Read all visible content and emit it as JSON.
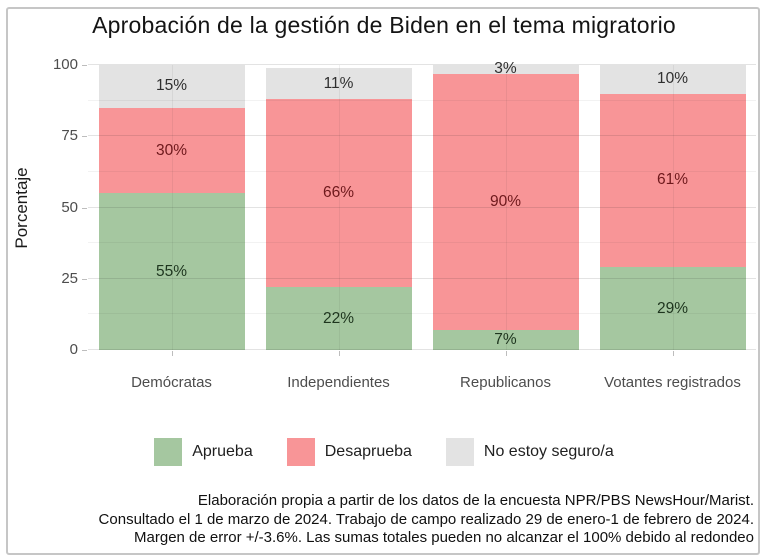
{
  "title": "Aprobación de la gestión de Biden en el tema migratorio",
  "chart_data": {
    "type": "bar",
    "stacked": true,
    "title": "Aprobación de la gestión de Biden en el tema migratorio",
    "xlabel": "",
    "ylabel": "Porcentaje",
    "ylim": [
      0,
      100
    ],
    "yticks": [
      0,
      25,
      50,
      75,
      100
    ],
    "yticks_minor": [
      12.5,
      37.5,
      62.5,
      87.5
    ],
    "grid": true,
    "legend_position": "bottom",
    "value_suffix": "%",
    "categories": [
      "Demócratas",
      "Independientes",
      "Republicanos",
      "Votantes registrados"
    ],
    "series": [
      {
        "name": "Aprueba",
        "color": "#a5c7a0",
        "label_color": "#1e351e",
        "values": [
          55,
          22,
          7,
          29
        ]
      },
      {
        "name": "Desaprueba",
        "color": "#f89597",
        "label_color": "#6e191c",
        "values": [
          30,
          66,
          90,
          61
        ]
      },
      {
        "name": "No estoy seguro/a",
        "color": "#e3e3e3",
        "label_color": "#2f2f2f",
        "values": [
          15,
          11,
          3,
          10
        ]
      }
    ]
  },
  "footer": {
    "lines": [
      "Elaboración propia a partir de los datos de la encuesta NPR/PBS NewsHour/Marist.",
      "Consultado el 1 de marzo de 2024. Trabajo de campo realizado 29 de enero-1 de febrero de 2024.",
      "Margen de error +/-3.6%. Las sumas totales pueden no alcanzar el 100% debido al redondeo"
    ]
  }
}
